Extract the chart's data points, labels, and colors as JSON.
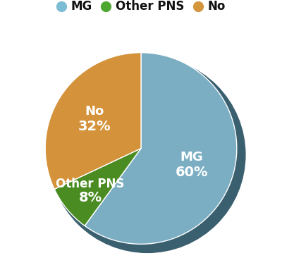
{
  "slices": [
    60,
    8,
    32
  ],
  "labels": [
    "MG",
    "Other PNS",
    "No"
  ],
  "colors": [
    "#7BAEC3",
    "#4A8C22",
    "#D4923A"
  ],
  "legend_colors": [
    "#7BBDD4",
    "#4EA830",
    "#D4963C"
  ],
  "text_color": "#ffffff",
  "label_fontsize": 13,
  "pct_fontsize": 14,
  "startangle": 90,
  "background_color": "#ffffff",
  "border_color": "#3a5f70",
  "legend_fontsize": 12
}
